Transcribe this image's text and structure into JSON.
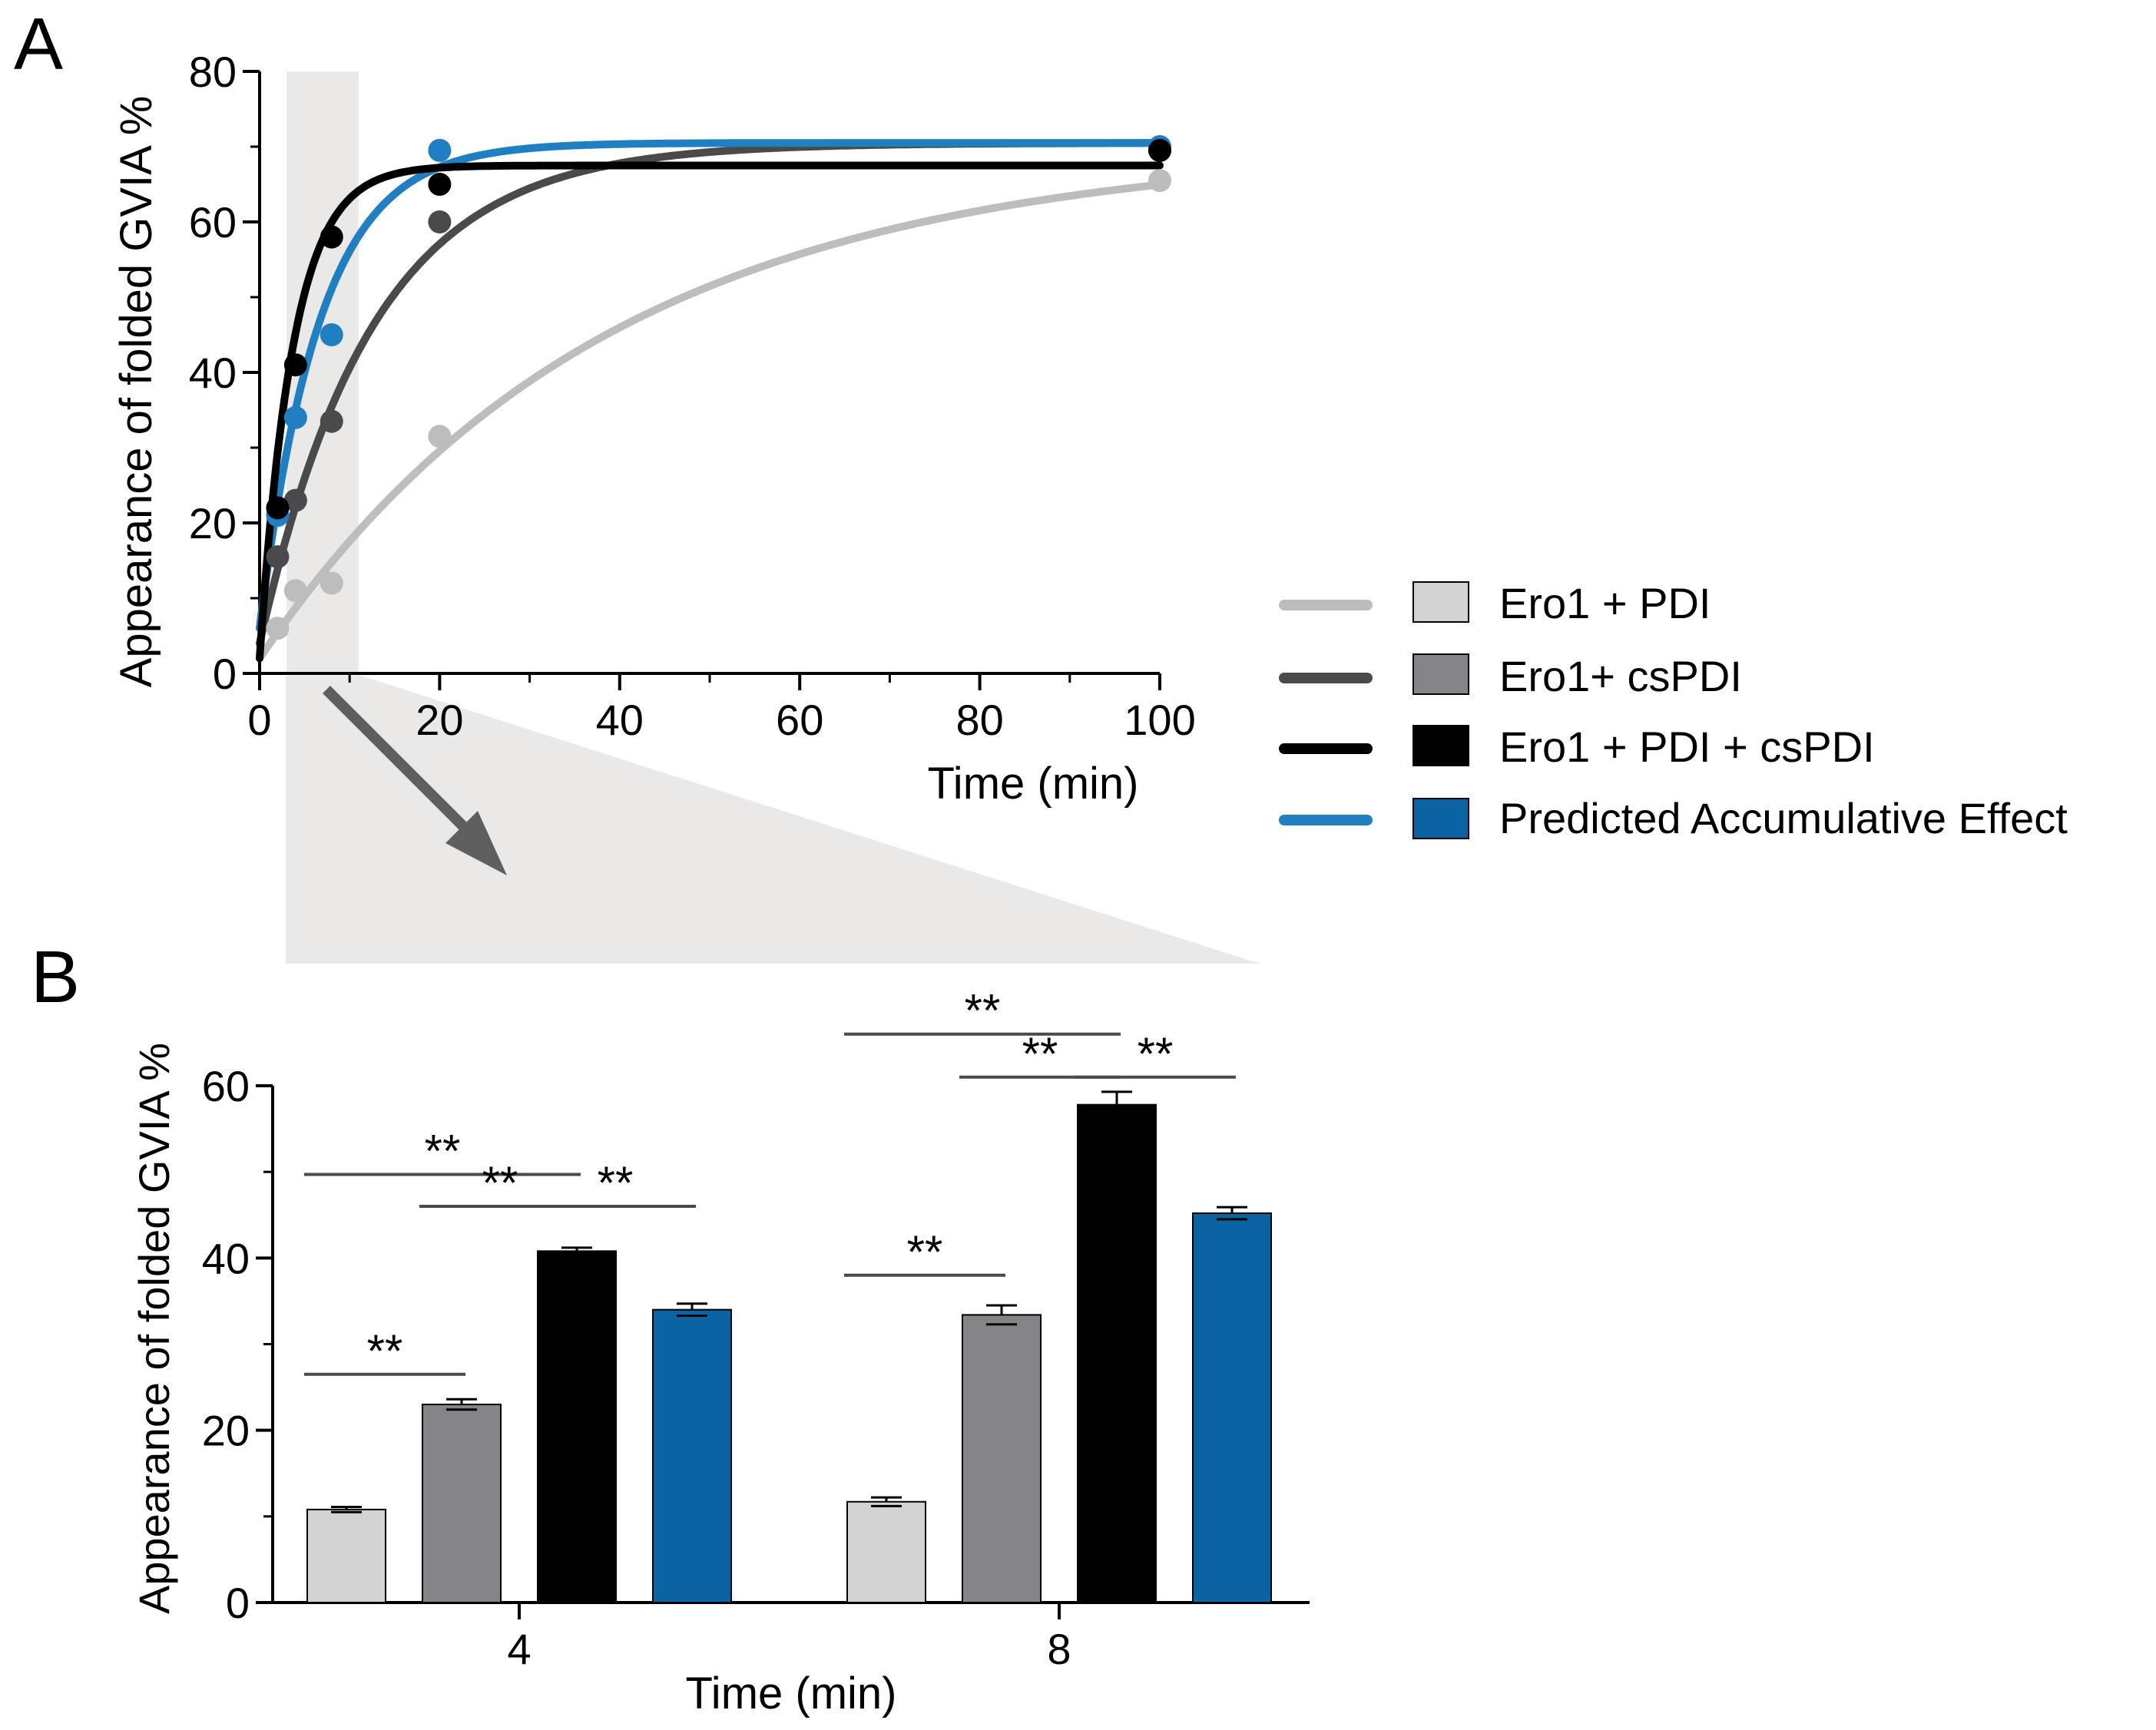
{
  "panels": {
    "a_label": "A",
    "b_label": "B"
  },
  "colors": {
    "ero1_pdi_line": "#bdbdbd",
    "ero1_cspdi_line": "#4a4a4c",
    "ero1_pdi_cspdi_line": "#000000",
    "predicted_line": "#1f7fc0",
    "ero1_pdi_bar": "#d4d3d4",
    "ero1_cspdi_bar": "#858488",
    "ero1_pdi_cspdi_bar": "#000000",
    "predicted_bar": "#0a63a3",
    "highlight": "#ebe8e8",
    "significance": "#4a4a4a"
  },
  "legend": {
    "items": [
      {
        "label": "Ero1 + PDI",
        "line_color": "#bdbdbd",
        "box_color": "#d4d3d4"
      },
      {
        "label": "Ero1+ csPDI",
        "line_color": "#4a4a4c",
        "box_color": "#858488"
      },
      {
        "label": "Ero1 + PDI + csPDI",
        "line_color": "#000000",
        "box_color": "#000000"
      },
      {
        "label": "Predicted Accumulative Effect",
        "line_color": "#1f7fc0",
        "box_color": "#0a63a3"
      }
    ]
  },
  "chart_data": [
    {
      "type": "scatter",
      "panel": "A",
      "xlabel": "Time (min)",
      "ylabel": "Appearance of folded GVIA %",
      "xlim": [
        0,
        100
      ],
      "ylim": [
        0,
        80
      ],
      "xticks": [
        0,
        20,
        40,
        60,
        80,
        100
      ],
      "yticks": [
        0,
        20,
        40,
        60,
        80
      ],
      "highlight_range_x": [
        3,
        11
      ],
      "series": [
        {
          "name": "Ero1 + PDI",
          "color": "#bdbdbd",
          "points": [
            [
              2,
              6
            ],
            [
              4,
              11
            ],
            [
              8,
              12
            ],
            [
              20,
              31.5
            ],
            [
              100,
              65.5
            ]
          ],
          "fit": {
            "plateau": 70,
            "k": 0.026,
            "y0": 2
          }
        },
        {
          "name": "Ero1+ csPDI",
          "color": "#4a4a4c",
          "points": [
            [
              2,
              15.5
            ],
            [
              4,
              23
            ],
            [
              8,
              33.5
            ],
            [
              20,
              60
            ],
            [
              100,
              69.5
            ]
          ],
          "fit": {
            "plateau": 70.5,
            "k": 0.08,
            "y0": 4
          }
        },
        {
          "name": "Predicted Accumulative Effect",
          "color": "#1f7fc0",
          "points": [
            [
              2,
              21
            ],
            [
              4,
              34
            ],
            [
              8,
              45
            ],
            [
              20,
              69.5
            ],
            [
              100,
              70
            ]
          ],
          "fit": {
            "plateau": 70.5,
            "k": 0.15,
            "y0": 6
          }
        },
        {
          "name": "Ero1 + PDI + csPDI",
          "color": "#000000",
          "points": [
            [
              2,
              22
            ],
            [
              4,
              41
            ],
            [
              8,
              58
            ],
            [
              20,
              65
            ],
            [
              100,
              69.5
            ]
          ],
          "fit": {
            "plateau": 67.5,
            "k": 0.27,
            "y0": 2
          }
        }
      ]
    },
    {
      "type": "bar",
      "panel": "B",
      "xlabel": "Time (min)",
      "ylabel": "Appearance of folded GVIA %",
      "categories": [
        "4",
        "8"
      ],
      "ylim": [
        0,
        60
      ],
      "yticks": [
        0,
        20,
        40,
        60
      ],
      "series": [
        {
          "name": "Ero1 + PDI",
          "color": "#d4d3d4",
          "values": [
            10.8,
            11.7
          ],
          "errors": [
            0.3,
            0.5
          ]
        },
        {
          "name": "Ero1+ csPDI",
          "color": "#858488",
          "values": [
            23.0,
            33.4
          ],
          "errors": [
            0.6,
            1.1
          ]
        },
        {
          "name": "Ero1 + PDI + csPDI",
          "color": "#000000",
          "values": [
            40.8,
            57.8
          ],
          "errors": [
            0.4,
            1.5
          ]
        },
        {
          "name": "Predicted Accumulative Effect",
          "color": "#0a63a3",
          "values": [
            34.0,
            45.2
          ],
          "errors": [
            0.7,
            0.7
          ]
        }
      ],
      "significance": [
        {
          "category": 0,
          "from": 1,
          "to": 2,
          "label": "**",
          "y": 26.5
        },
        {
          "category": 0,
          "from": 1,
          "to": 3,
          "label": "**",
          "y": 49.7
        },
        {
          "category": 0,
          "from": 2,
          "to": 3,
          "label": "**",
          "y": 46.0
        },
        {
          "category": 0,
          "from": 3,
          "to": 4,
          "label": "**",
          "y": 46.0
        },
        {
          "category": 1,
          "from": 1,
          "to": 2,
          "label": "**",
          "y": 38.0
        },
        {
          "category": 1,
          "from": 1,
          "to": 3,
          "label": "**",
          "y": 66.0
        },
        {
          "category": 1,
          "from": 2,
          "to": 3,
          "label": "**",
          "y": 61.0
        },
        {
          "category": 1,
          "from": 3,
          "to": 4,
          "label": "**",
          "y": 61.0
        }
      ]
    }
  ]
}
